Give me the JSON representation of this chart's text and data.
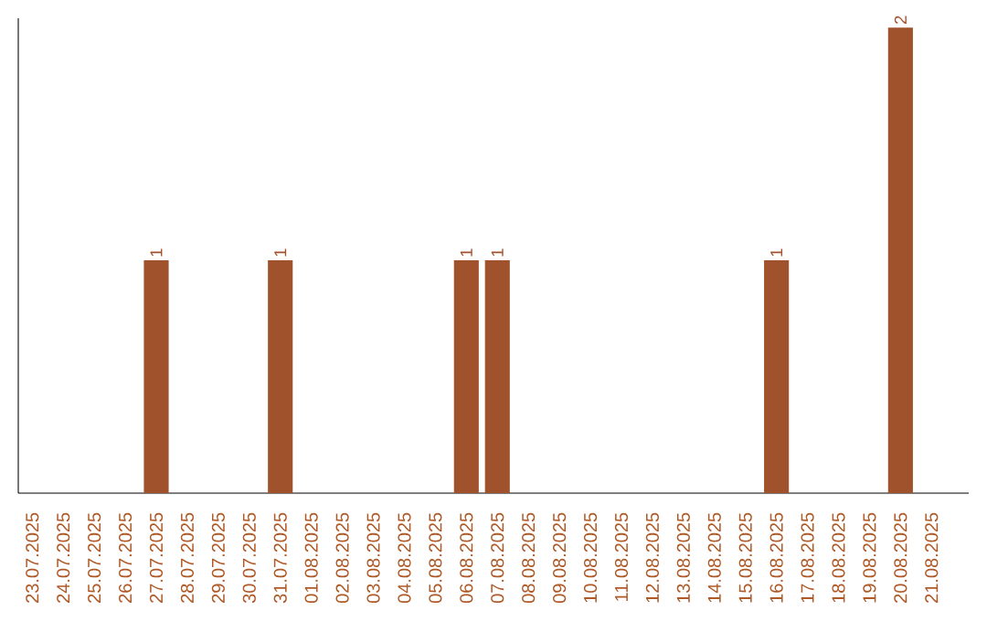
{
  "chart_data": {
    "type": "bar",
    "categories": [
      "23.07.2025",
      "24.07.2025",
      "25.07.2025",
      "26.07.2025",
      "27.07.2025",
      "28.07.2025",
      "29.07.2025",
      "30.07.2025",
      "31.07.2025",
      "01.08.2025",
      "02.08.2025",
      "03.08.2025",
      "04.08.2025",
      "05.08.2025",
      "06.08.2025",
      "07.08.2025",
      "08.08.2025",
      "09.08.2025",
      "10.08.2025",
      "11.08.2025",
      "12.08.2025",
      "13.08.2025",
      "14.08.2025",
      "15.08.2025",
      "16.08.2025",
      "17.08.2025",
      "18.08.2025",
      "19.08.2025",
      "20.08.2025",
      "21.08.2025"
    ],
    "values": [
      0,
      0,
      0,
      0,
      1,
      0,
      0,
      0,
      1,
      0,
      0,
      0,
      0,
      0,
      1,
      1,
      0,
      0,
      0,
      0,
      0,
      0,
      0,
      0,
      1,
      0,
      0,
      0,
      2,
      0
    ],
    "value_labels": [
      null,
      null,
      null,
      null,
      "1",
      null,
      null,
      null,
      "1",
      null,
      null,
      null,
      null,
      null,
      "1",
      "1",
      null,
      null,
      null,
      null,
      null,
      null,
      null,
      null,
      "1",
      null,
      null,
      null,
      "2",
      null
    ],
    "color": "#a0522d"
  }
}
